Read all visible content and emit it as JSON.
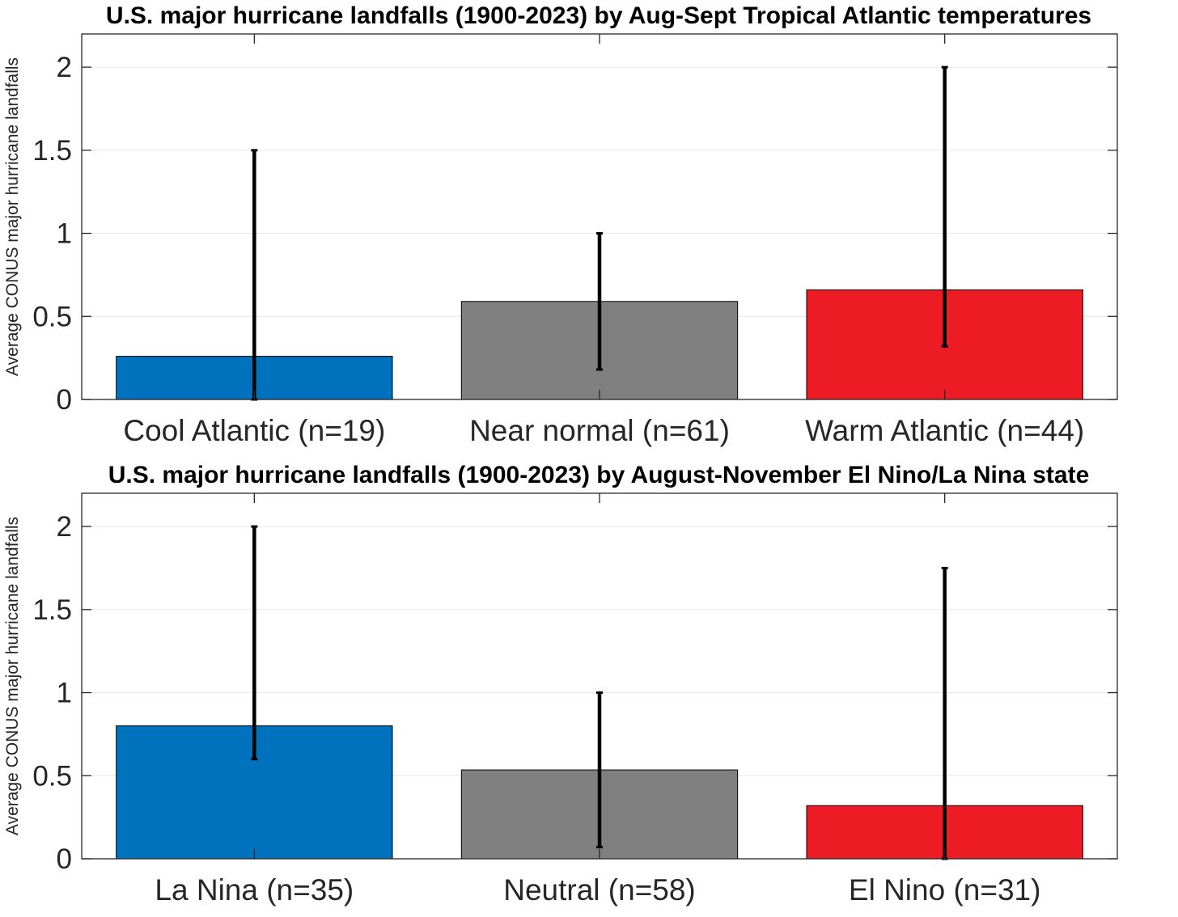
{
  "colors": {
    "cool": "#0072BD",
    "neutral": "#808080",
    "warm": "#ED1C24",
    "errorbar": "#000000",
    "grid": "#E6E6E6",
    "axis": "#262626"
  },
  "chart_data": [
    {
      "type": "bar",
      "title": "U.S. major hurricane landfalls (1900-2023) by Aug-Sept Tropical Atlantic temperatures",
      "xlabel": "",
      "ylabel": "Average CONUS major hurricane landfalls",
      "ylim": [
        0,
        2.2
      ],
      "yticks": [
        0,
        0.5,
        1,
        1.5,
        2
      ],
      "yticklabels": [
        "0",
        "0.5",
        "1",
        "1.5",
        "2"
      ],
      "grid": true,
      "categories": [
        "Cool Atlantic (n=19)",
        "Near normal (n=61)",
        "Warm Atlantic (n=44)"
      ],
      "values": [
        0.26,
        0.59,
        0.66
      ],
      "error_low": [
        0,
        0.18,
        0.32
      ],
      "error_high": [
        1.5,
        1.0,
        2.0
      ],
      "bar_colors": [
        "#0072BD",
        "#808080",
        "#ED1C24"
      ]
    },
    {
      "type": "bar",
      "title": "U.S. major hurricane landfalls (1900-2023) by August-November El Nino/La Nina state",
      "xlabel": "",
      "ylabel": "Average CONUS major hurricane landfalls",
      "ylim": [
        0,
        2.2
      ],
      "yticks": [
        0,
        0.5,
        1,
        1.5,
        2
      ],
      "yticklabels": [
        "0",
        "0.5",
        "1",
        "1.5",
        "2"
      ],
      "grid": true,
      "categories": [
        "La Nina (n=35)",
        "Neutral (n=58)",
        "El Nino (n=31)"
      ],
      "values": [
        0.8,
        0.535,
        0.32
      ],
      "error_low": [
        0.6,
        0.07,
        0
      ],
      "error_high": [
        2.0,
        1.0,
        1.75
      ],
      "bar_colors": [
        "#0072BD",
        "#808080",
        "#ED1C24"
      ]
    }
  ]
}
